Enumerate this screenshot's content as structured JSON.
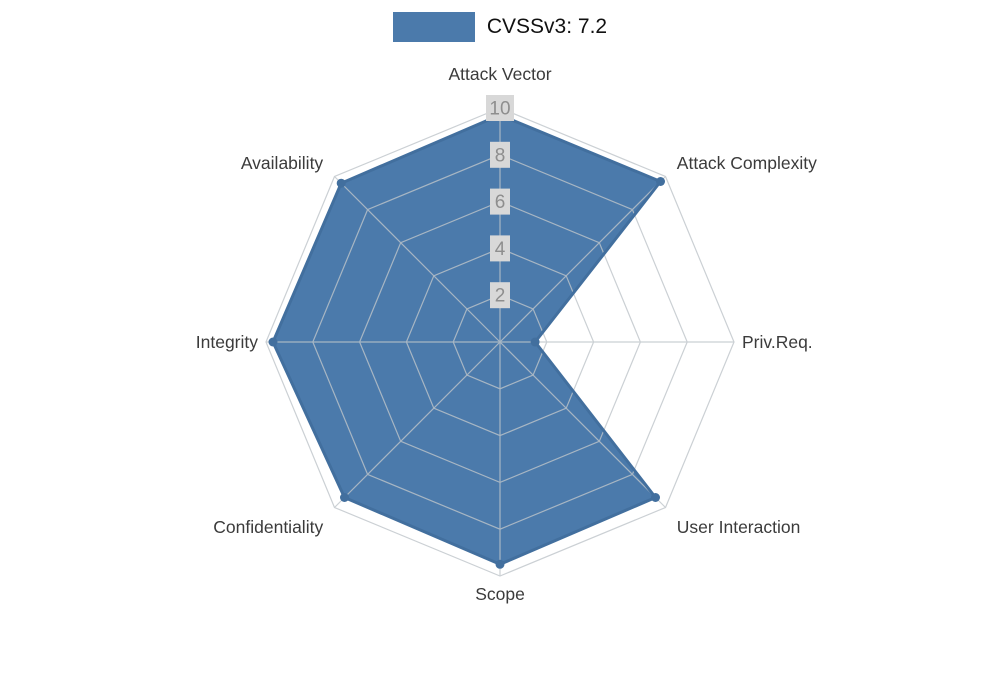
{
  "legend": {
    "label": "CVSSv3: 7.2"
  },
  "chart_data": {
    "type": "radar",
    "title": "CVSSv3: 7.2",
    "categories": [
      "Attack Vector",
      "Attack Complexity",
      "Priv.Req.",
      "User Interaction",
      "Scope",
      "Confidentiality",
      "Integrity",
      "Availability"
    ],
    "series": [
      {
        "name": "CVSSv3: 7.2",
        "values": [
          9.7,
          9.7,
          1.5,
          9.4,
          9.5,
          9.4,
          9.7,
          9.6
        ]
      }
    ],
    "radial_ticks": [
      2,
      4,
      6,
      8,
      10
    ],
    "rmax": 10,
    "start_axis": "top",
    "direction": "clockwise",
    "grid": "on",
    "legend_position": "top-center",
    "colors": {
      "fill": "#4b7aab",
      "stroke": "#426f9e",
      "grid": "#bfc5ca",
      "tick_bg": "#d8d8d8",
      "tick_label": "#8e8e8e",
      "axis_label": "#3b3b3b"
    }
  }
}
